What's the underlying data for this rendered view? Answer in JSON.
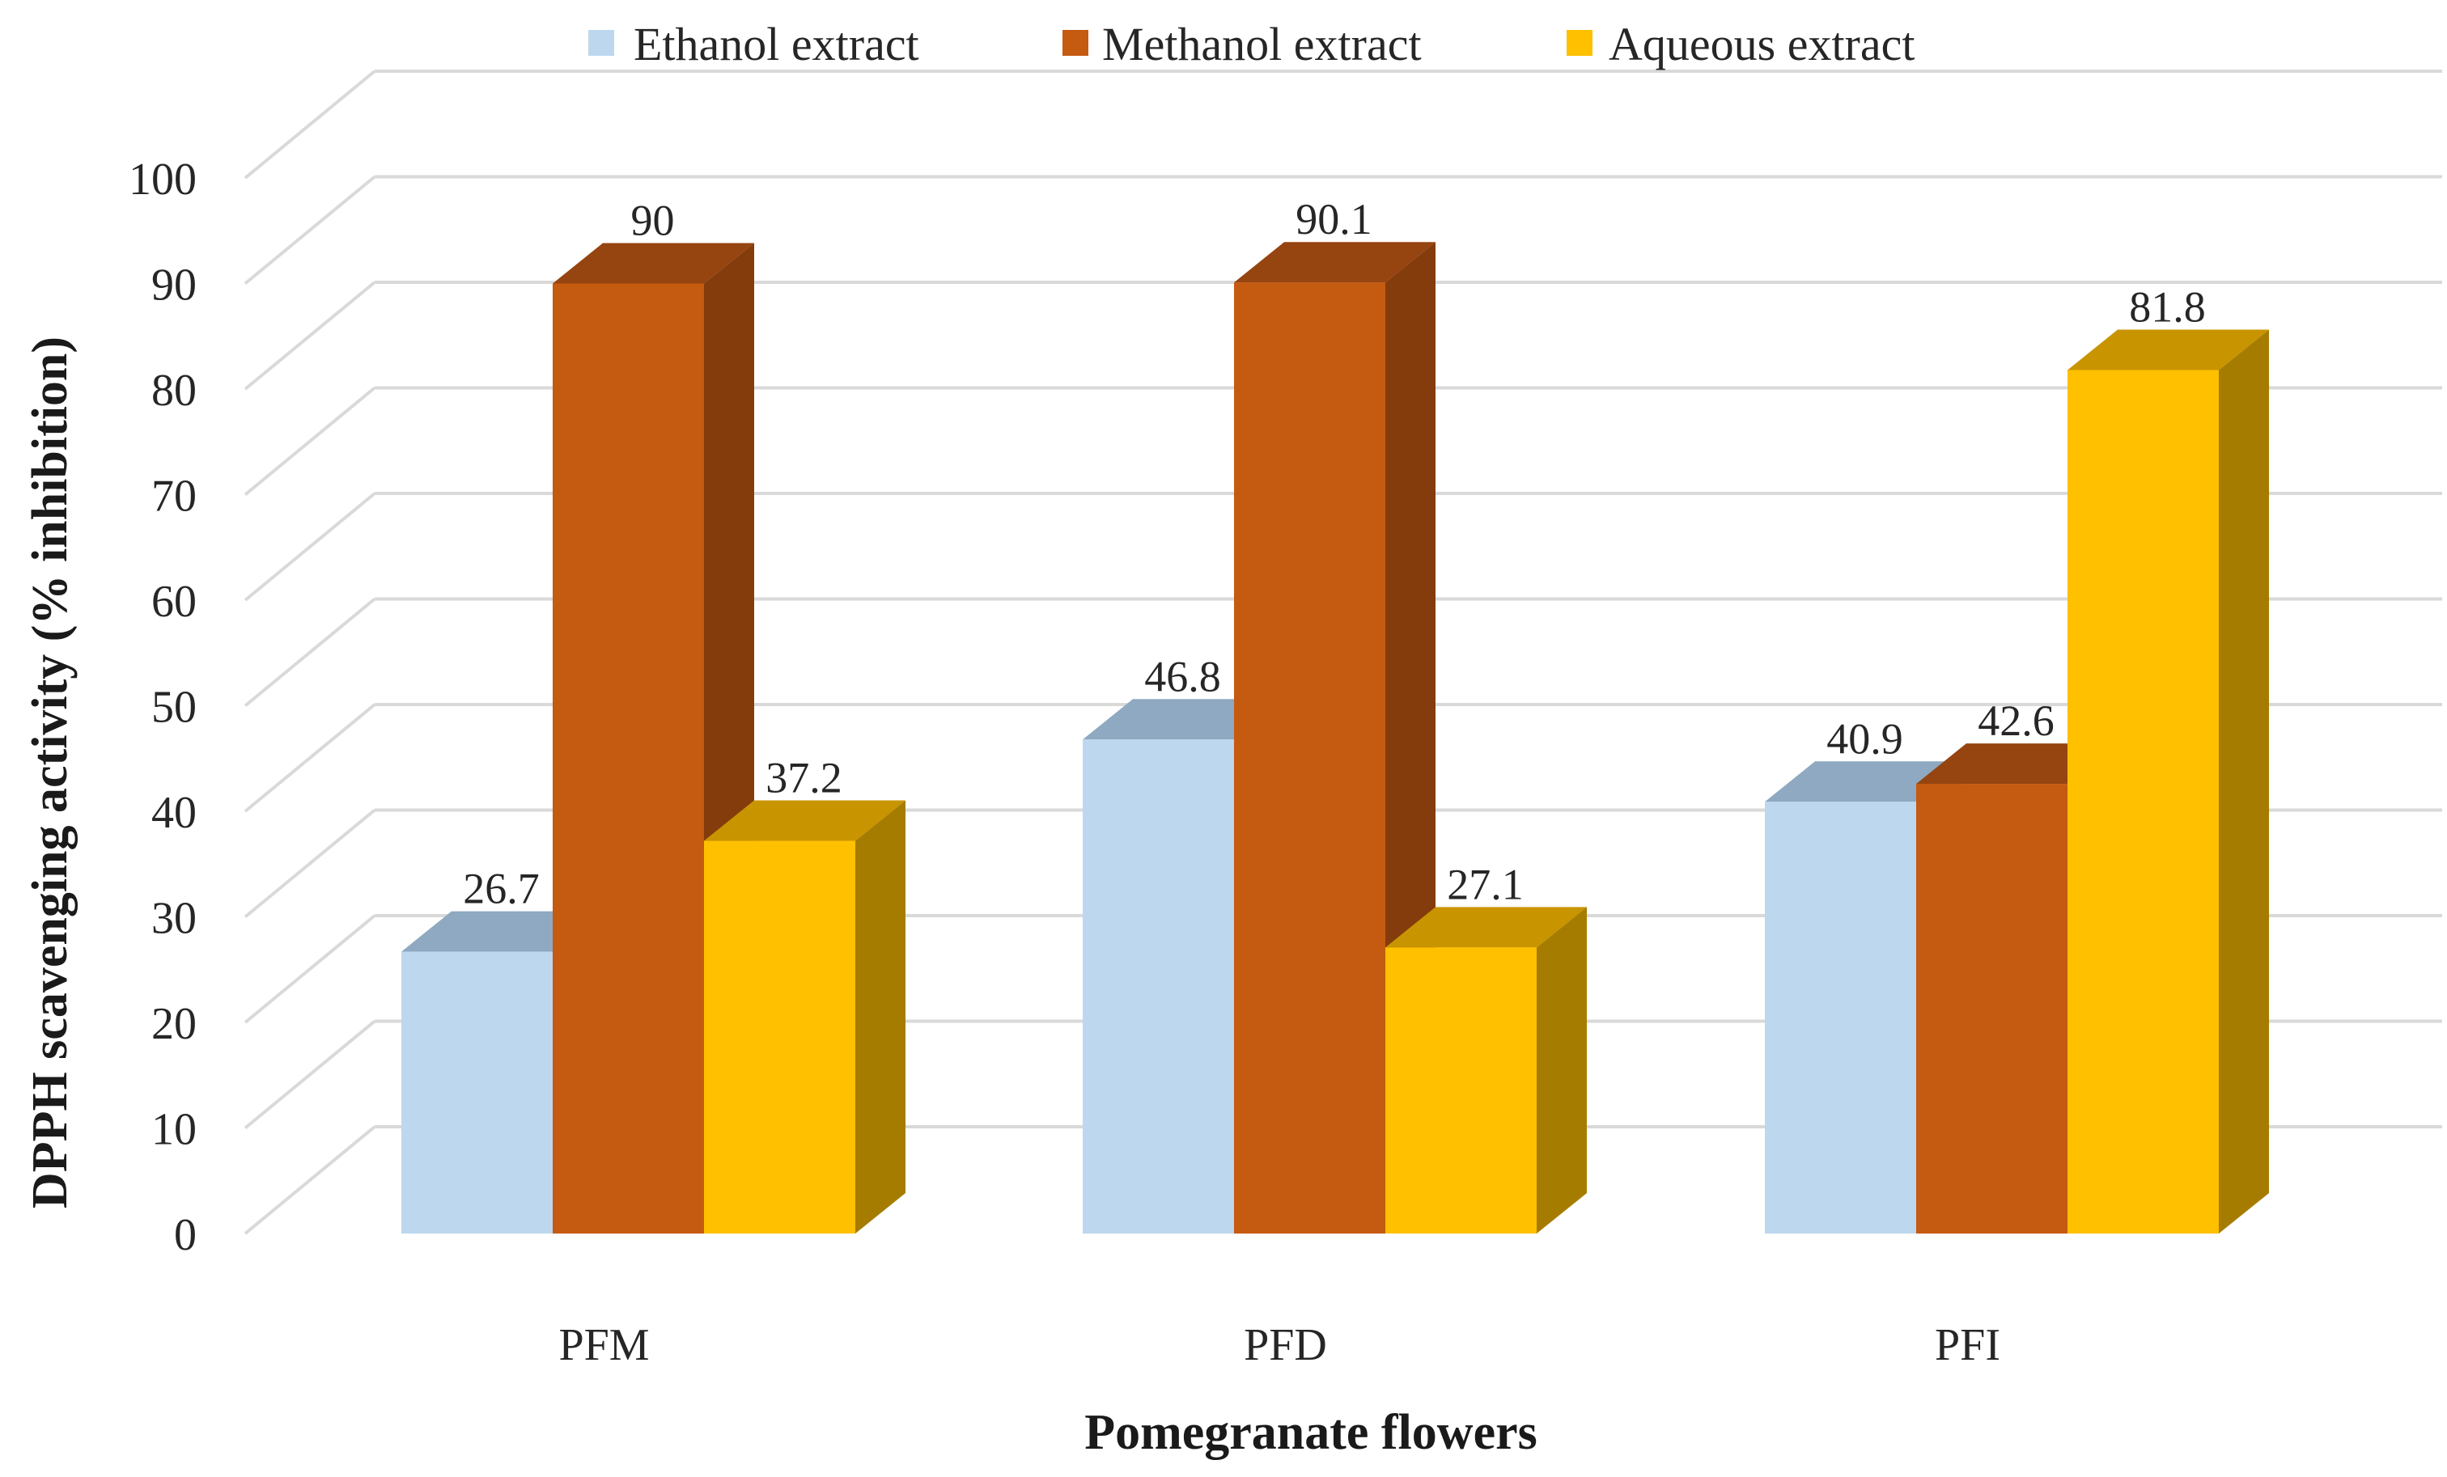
{
  "chart_data": {
    "type": "bar",
    "style": "3d-clustered-column",
    "title": "",
    "xlabel": "Pomegranate flowers",
    "ylabel": "DPPH scavenging activity (% inhibition)",
    "ylim": [
      0,
      100
    ],
    "yticks": [
      0,
      10,
      20,
      30,
      40,
      50,
      60,
      70,
      80,
      90,
      100
    ],
    "grid": true,
    "legend_position": "top",
    "categories": [
      "PFM",
      "PFD",
      "PFI"
    ],
    "series": [
      {
        "name": "Ethanol extract",
        "values": [
          26.7,
          46.8,
          40.9
        ],
        "color": "#BDD7EE",
        "top_color": "#8EA9C1",
        "side_color": "#8EA9C1"
      },
      {
        "name": "Methanol extract",
        "values": [
          90,
          90.1,
          42.6
        ],
        "color": "#C55A11",
        "top_color": "#964410",
        "side_color": "#843C0C"
      },
      {
        "name": "Aqueous extract",
        "values": [
          37.2,
          27.1,
          81.8
        ],
        "color": "#FFC000",
        "top_color": "#C89500",
        "side_color": "#A67C00"
      }
    ],
    "data_labels": [
      [
        "26.7",
        "46.8",
        "40.9"
      ],
      [
        "90",
        "90.1",
        "42.6"
      ],
      [
        "37.2",
        "27.1",
        "81.8"
      ]
    ]
  }
}
